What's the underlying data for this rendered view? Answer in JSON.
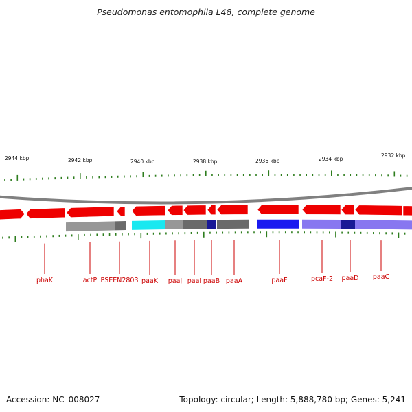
{
  "title": "Pseudomonas entomophila L48, complete genome",
  "footer": {
    "accession": "Accession: NC_008027",
    "topology": "Topology: circular; Length: 5,888,780 bp; Genes: 5,241"
  },
  "colors": {
    "gene_fill": "#ee0000",
    "backbone": "#808080",
    "tick": "#2e7d1e",
    "label": "#cc0000",
    "feature_gray": "#8c8c8c",
    "feature_dark": "#5a5a5a",
    "feature_cyan": "#00e5ee",
    "feature_blue": "#0000ee",
    "feature_lavender": "#7b68ee",
    "feature_navy": "#00008b"
  },
  "scale_labels": [
    "2944 kbp",
    "2942 kbp",
    "2940 kbp",
    "2938 kbp",
    "2936 kbp",
    "2934 kbp",
    "2932 kbp"
  ],
  "gene_labels": [
    "phaK",
    "actP",
    "PSEEN2803",
    "paaK",
    "paaJ",
    "paaI",
    "paaB",
    "paaA",
    "paaF",
    "pcaF-2",
    "paaD",
    "paaC"
  ],
  "genes": [
    {
      "strand": "forward"
    },
    {
      "strand": "reverse"
    },
    {
      "strand": "reverse"
    },
    {
      "strand": "reverse"
    },
    {
      "strand": "reverse"
    },
    {
      "strand": "reverse"
    },
    {
      "strand": "reverse"
    },
    {
      "strand": "reverse"
    },
    {
      "strand": "reverse"
    },
    {
      "strand": "reverse"
    },
    {
      "strand": "reverse"
    },
    {
      "strand": "reverse"
    },
    {
      "strand": "reverse"
    },
    {
      "strand": "forward"
    }
  ],
  "features": [
    {
      "color": "feature_gray"
    },
    {
      "color": "feature_dark"
    },
    {
      "color": "feature_cyan"
    },
    {
      "color": "feature_gray"
    },
    {
      "color": "feature_dark"
    },
    {
      "color": "feature_navy"
    },
    {
      "color": "feature_dark"
    },
    {
      "color": "feature_blue"
    },
    {
      "color": "feature_lavender"
    },
    {
      "color": "feature_navy"
    },
    {
      "color": "feature_lavender"
    }
  ]
}
